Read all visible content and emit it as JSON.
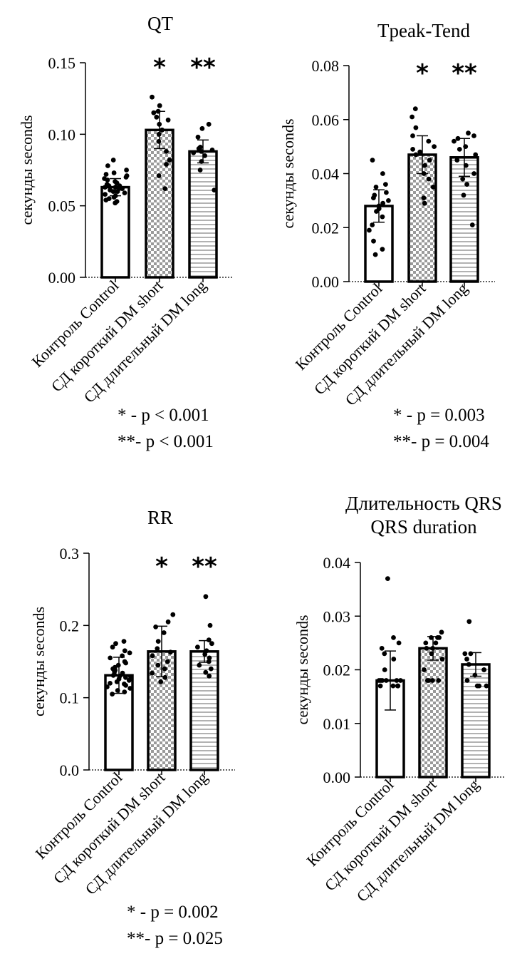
{
  "chart_data": [
    {
      "type": "bar",
      "title": [
        "QT"
      ],
      "ylabel": "секунды  seconds",
      "ylim": [
        0,
        0.15
      ],
      "ticks": [
        0,
        0.05,
        0.1,
        0.15
      ],
      "tick_labels": [
        "0.00",
        "0.05",
        "0.10",
        "0.15"
      ],
      "categories": [
        "Контроль Control",
        "СД короткий DM short",
        "СД длительный DM long"
      ],
      "values": [
        0.063,
        0.103,
        0.088
      ],
      "sd": [
        0.006,
        0.013,
        0.008
      ],
      "points": [
        [
          0.052,
          0.053,
          0.054,
          0.055,
          0.056,
          0.057,
          0.058,
          0.059,
          0.06,
          0.06,
          0.061,
          0.062,
          0.062,
          0.063,
          0.063,
          0.064,
          0.064,
          0.065,
          0.066,
          0.067,
          0.068,
          0.069,
          0.07,
          0.071,
          0.072,
          0.073,
          0.075,
          0.078,
          0.082
        ],
        [
          0.062,
          0.071,
          0.079,
          0.082,
          0.088,
          0.095,
          0.1,
          0.103,
          0.107,
          0.11,
          0.112,
          0.115,
          0.116,
          0.12,
          0.126
        ],
        [
          0.061,
          0.075,
          0.081,
          0.085,
          0.087,
          0.088,
          0.089,
          0.09,
          0.091,
          0.098,
          0.104,
          0.107
        ]
      ],
      "stars": [
        "",
        "*",
        "**"
      ],
      "notes": [
        "*  - p < 0.001",
        "**- p < 0.001"
      ]
    },
    {
      "type": "bar",
      "title": [
        "Tpeak-Tend"
      ],
      "ylabel": "секунды seconds",
      "ylim": [
        0,
        0.08
      ],
      "ticks": [
        0,
        0.02,
        0.04,
        0.06,
        0.08
      ],
      "tick_labels": [
        "0.00",
        "0.02",
        "0.04",
        "0.06",
        "0.08"
      ],
      "categories": [
        "Контроль Control",
        "СД короткий DM short",
        "СД длительный DM long"
      ],
      "values": [
        0.028,
        0.047,
        0.046
      ],
      "sd": [
        0.006,
        0.007,
        0.007
      ],
      "points": [
        [
          0.01,
          0.012,
          0.015,
          0.019,
          0.021,
          0.024,
          0.026,
          0.027,
          0.028,
          0.029,
          0.03,
          0.031,
          0.032,
          0.033,
          0.035,
          0.036,
          0.04,
          0.045
        ],
        [
          0.029,
          0.031,
          0.035,
          0.038,
          0.04,
          0.043,
          0.045,
          0.047,
          0.048,
          0.049,
          0.05,
          0.052,
          0.054,
          0.057,
          0.061,
          0.064
        ],
        [
          0.021,
          0.032,
          0.036,
          0.038,
          0.04,
          0.043,
          0.045,
          0.047,
          0.049,
          0.05,
          0.052,
          0.053,
          0.054,
          0.055
        ]
      ],
      "stars": [
        "",
        "*",
        "**"
      ],
      "notes": [
        "*  - p = 0.003",
        "**- p = 0.004"
      ]
    },
    {
      "type": "bar",
      "title": [
        "RR"
      ],
      "ylabel": "секунды seconds",
      "ylim": [
        0,
        0.3
      ],
      "ticks": [
        0,
        0.1,
        0.2,
        0.3
      ],
      "tick_labels": [
        "0.0",
        "0.1",
        "0.2",
        "0.3"
      ],
      "categories": [
        "Контроль Control",
        "СД короткий DM short",
        "СД длительный DM long"
      ],
      "values": [
        0.131,
        0.164,
        0.164
      ],
      "sd": [
        0.025,
        0.035,
        0.015
      ],
      "points": [
        [
          0.105,
          0.108,
          0.11,
          0.113,
          0.115,
          0.117,
          0.119,
          0.12,
          0.122,
          0.124,
          0.126,
          0.128,
          0.129,
          0.13,
          0.131,
          0.132,
          0.134,
          0.136,
          0.138,
          0.14,
          0.142,
          0.145,
          0.148,
          0.15,
          0.155,
          0.158,
          0.162,
          0.165,
          0.17,
          0.175,
          0.178
        ],
        [
          0.122,
          0.128,
          0.134,
          0.14,
          0.145,
          0.15,
          0.158,
          0.163,
          0.168,
          0.178,
          0.19,
          0.198,
          0.205,
          0.215
        ],
        [
          0.13,
          0.135,
          0.14,
          0.145,
          0.15,
          0.155,
          0.16,
          0.165,
          0.17,
          0.175,
          0.18,
          0.2,
          0.24
        ]
      ],
      "stars": [
        "",
        "*",
        "**"
      ],
      "notes": [
        "*  - p = 0.002",
        "**- p = 0.025"
      ]
    },
    {
      "type": "bar",
      "title": [
        "Длительность QRS",
        "QRS duration"
      ],
      "ylabel": "секунды seconds",
      "ylim": [
        0,
        0.04
      ],
      "ticks": [
        0,
        0.01,
        0.02,
        0.03,
        0.04
      ],
      "tick_labels": [
        "0.00",
        "0.01",
        "0.02",
        "0.03",
        "0.04"
      ],
      "categories": [
        "Контроль Control",
        "СД короткий DM short",
        "СД длительный DM long"
      ],
      "values": [
        0.018,
        0.024,
        0.021
      ],
      "sd": [
        0.0055,
        0.0022,
        0.0022
      ],
      "points": [
        [
          0.017,
          0.017,
          0.017,
          0.017,
          0.017,
          0.018,
          0.018,
          0.018,
          0.018,
          0.018,
          0.018,
          0.02,
          0.022,
          0.023,
          0.024,
          0.025,
          0.026,
          0.037
        ],
        [
          0.018,
          0.018,
          0.018,
          0.018,
          0.02,
          0.022,
          0.023,
          0.024,
          0.024,
          0.025,
          0.025,
          0.026,
          0.026,
          0.026,
          0.027
        ],
        [
          0.017,
          0.017,
          0.017,
          0.018,
          0.019,
          0.02,
          0.02,
          0.021,
          0.022,
          0.023,
          0.023,
          0.029
        ]
      ],
      "stars": [
        "",
        "",
        ""
      ],
      "notes": []
    }
  ]
}
